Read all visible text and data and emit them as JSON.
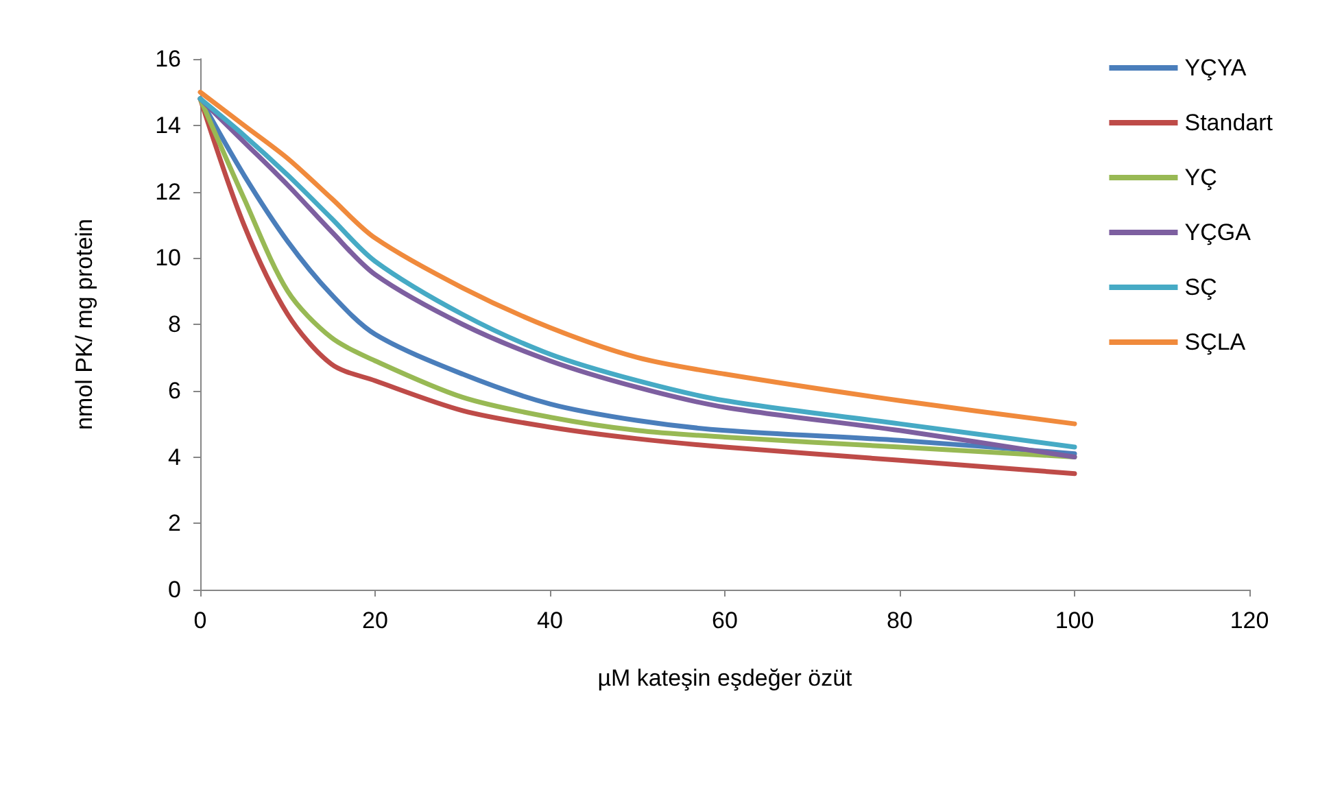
{
  "chart_data": {
    "type": "line",
    "xlabel": "µM kateşin eşdeğer özüt",
    "ylabel": "nmol PK/ mg protein",
    "x": [
      0,
      5,
      10,
      15,
      20,
      30,
      40,
      50,
      60,
      80,
      100
    ],
    "series": [
      {
        "name": "YÇYA",
        "color": "#4a7ebb",
        "values": [
          14.8,
          12.5,
          10.5,
          8.9,
          7.7,
          6.5,
          5.6,
          5.1,
          4.8,
          4.5,
          4.1
        ]
      },
      {
        "name": "Standart",
        "color": "#be4b48",
        "values": [
          14.8,
          11,
          8.3,
          6.8,
          6.3,
          5.4,
          4.9,
          4.55,
          4.3,
          3.9,
          3.5
        ]
      },
      {
        "name": "YÇ",
        "color": "#98b954",
        "values": [
          14.8,
          11.8,
          9,
          7.6,
          6.9,
          5.8,
          5.2,
          4.8,
          4.6,
          4.3,
          4
        ]
      },
      {
        "name": "YÇGA",
        "color": "#7d5fa0",
        "values": [
          14.8,
          13.5,
          12.2,
          10.8,
          9.5,
          8,
          6.9,
          6.1,
          5.5,
          4.8,
          4
        ]
      },
      {
        "name": "SÇ",
        "color": "#46aac5",
        "values": [
          14.8,
          13.7,
          12.5,
          11.2,
          9.9,
          8.3,
          7.1,
          6.3,
          5.7,
          5,
          4.3
        ]
      },
      {
        "name": "SÇLA",
        "color": "#f08a3c",
        "values": [
          15,
          14,
          13,
          11.8,
          10.6,
          9.1,
          7.9,
          7,
          6.5,
          5.7,
          5
        ]
      }
    ],
    "xlim": [
      0,
      120
    ],
    "xticks": [
      0,
      20,
      40,
      60,
      80,
      100,
      120
    ],
    "ylim": [
      0,
      16
    ],
    "yticks": [
      0,
      2,
      4,
      6,
      8,
      10,
      12,
      14,
      16
    ],
    "grid": false,
    "legend": "top right",
    "marker": "none",
    "line_style": "solid"
  }
}
